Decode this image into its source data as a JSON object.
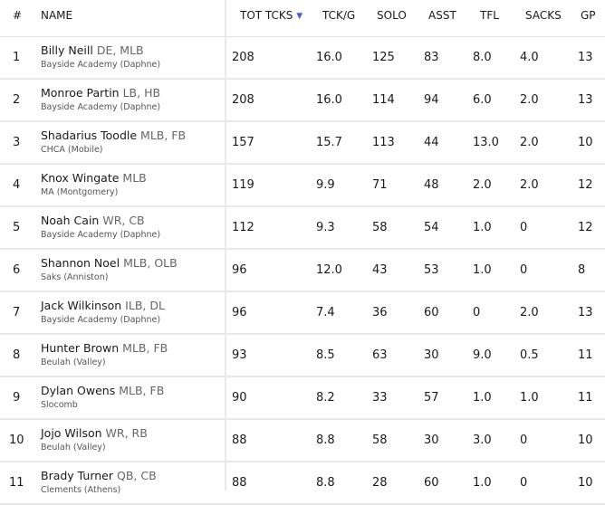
{
  "columns": {
    "rank": "#",
    "name": "NAME",
    "tot": "TOT TCKS",
    "tckg": "TCK/G",
    "solo": "SOLO",
    "asst": "ASST",
    "tfl": "TFL",
    "sacks": "SACKS",
    "gp": "GP"
  },
  "sort_indicator": "▼",
  "rows": [
    {
      "rank": "1",
      "name": "Billy Neill",
      "pos": "DE, MLB",
      "school": "Bayside Academy (Daphne)",
      "tot": "208",
      "tckg": "16.0",
      "solo": "125",
      "asst": "83",
      "tfl": "8.0",
      "sacks": "4.0",
      "gp": "13"
    },
    {
      "rank": "2",
      "name": "Monroe Partin",
      "pos": "LB, HB",
      "school": "Bayside Academy (Daphne)",
      "tot": "208",
      "tckg": "16.0",
      "solo": "114",
      "asst": "94",
      "tfl": "6.0",
      "sacks": "2.0",
      "gp": "13"
    },
    {
      "rank": "3",
      "name": "Shadarius Toodle",
      "pos": "MLB, FB",
      "school": "CHCA (Mobile)",
      "tot": "157",
      "tckg": "15.7",
      "solo": "113",
      "asst": "44",
      "tfl": "13.0",
      "sacks": "2.0",
      "gp": "10"
    },
    {
      "rank": "4",
      "name": "Knox Wingate",
      "pos": "MLB",
      "school": "MA (Montgomery)",
      "tot": "119",
      "tckg": "9.9",
      "solo": "71",
      "asst": "48",
      "tfl": "2.0",
      "sacks": "2.0",
      "gp": "12"
    },
    {
      "rank": "5",
      "name": "Noah Cain",
      "pos": "WR, CB",
      "school": "Bayside Academy (Daphne)",
      "tot": "112",
      "tckg": "9.3",
      "solo": "58",
      "asst": "54",
      "tfl": "1.0",
      "sacks": "0",
      "gp": "12"
    },
    {
      "rank": "6",
      "name": "Shannon Noel",
      "pos": "MLB, OLB",
      "school": "Saks (Anniston)",
      "tot": "96",
      "tckg": "12.0",
      "solo": "43",
      "asst": "53",
      "tfl": "1.0",
      "sacks": "0",
      "gp": "8"
    },
    {
      "rank": "7",
      "name": "Jack Wilkinson",
      "pos": "ILB, DL",
      "school": "Bayside Academy (Daphne)",
      "tot": "96",
      "tckg": "7.4",
      "solo": "36",
      "asst": "60",
      "tfl": "0",
      "sacks": "2.0",
      "gp": "13"
    },
    {
      "rank": "8",
      "name": "Hunter Brown",
      "pos": "MLB, FB",
      "school": "Beulah (Valley)",
      "tot": "93",
      "tckg": "8.5",
      "solo": "63",
      "asst": "30",
      "tfl": "9.0",
      "sacks": "0.5",
      "gp": "11"
    },
    {
      "rank": "9",
      "name": "Dylan Owens",
      "pos": "MLB, FB",
      "school": "Slocomb",
      "tot": "90",
      "tckg": "8.2",
      "solo": "33",
      "asst": "57",
      "tfl": "1.0",
      "sacks": "1.0",
      "gp": "11"
    },
    {
      "rank": "10",
      "name": "Jojo Wilson",
      "pos": "WR, RB",
      "school": "Beulah (Valley)",
      "tot": "88",
      "tckg": "8.8",
      "solo": "58",
      "asst": "30",
      "tfl": "3.0",
      "sacks": "0",
      "gp": "10"
    },
    {
      "rank": "11",
      "name": "Brady Turner",
      "pos": "QB, CB",
      "school": "Clements (Athens)",
      "tot": "88",
      "tckg": "8.8",
      "solo": "28",
      "asst": "60",
      "tfl": "1.0",
      "sacks": "0",
      "gp": "10"
    }
  ],
  "colors": {
    "sorted_column_bg": "#eef3fb",
    "sort_arrow": "#4a5cc7",
    "row_divider": "#e8e8e8"
  }
}
